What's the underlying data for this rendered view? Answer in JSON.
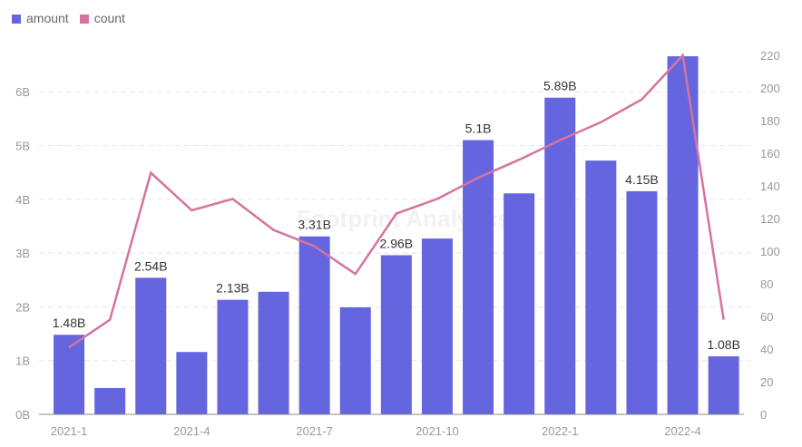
{
  "chart_data": {
    "type": "bar",
    "title": "",
    "legend": {
      "placement": "top-left",
      "items": [
        {
          "name": "amount",
          "color": "#6565e0"
        },
        {
          "name": "count",
          "color": "#d6739e"
        }
      ]
    },
    "categories": [
      "2021-1",
      "2021-2",
      "2021-3",
      "2021-4",
      "2021-5",
      "2021-6",
      "2021-7",
      "2021-8",
      "2021-9",
      "2021-10",
      "2021-11",
      "2021-12",
      "2022-1",
      "2022-2",
      "2022-3",
      "2022-4",
      "2022-5"
    ],
    "x_tick_labels": [
      "2021-1",
      "2021-4",
      "2021-7",
      "2021-10",
      "2022-1",
      "2022-4"
    ],
    "series": [
      {
        "name": "amount",
        "type": "bar",
        "axis": "left",
        "values": [
          1.48,
          0.49,
          2.54,
          1.16,
          2.13,
          2.28,
          3.31,
          1.99,
          2.96,
          3.27,
          5.1,
          4.11,
          5.89,
          4.72,
          4.15,
          6.66,
          1.08
        ],
        "data_labels": [
          "1.48B",
          "",
          "2.54B",
          "",
          "2.13B",
          "",
          "3.31B",
          "",
          "2.96B",
          "",
          "5.1B",
          "",
          "5.89B",
          "",
          "4.15B",
          "",
          "1.08B"
        ]
      },
      {
        "name": "count",
        "type": "line",
        "axis": "right",
        "values": [
          41,
          58,
          148,
          125,
          132,
          113,
          103,
          86,
          123,
          132,
          145,
          156,
          168,
          179,
          193,
          220,
          58
        ]
      }
    ],
    "y_left": {
      "ticks": [
        "0B",
        "1B",
        "2B",
        "3B",
        "4B",
        "5B",
        "6B"
      ],
      "range": [
        0,
        6.6
      ]
    },
    "y_right": {
      "ticks": [
        "0",
        "20",
        "40",
        "60",
        "80",
        "100",
        "120",
        "140",
        "160",
        "180",
        "200",
        "220"
      ],
      "range": [
        0,
        220
      ]
    },
    "grid": true
  },
  "watermark": "Footprint Analytics"
}
